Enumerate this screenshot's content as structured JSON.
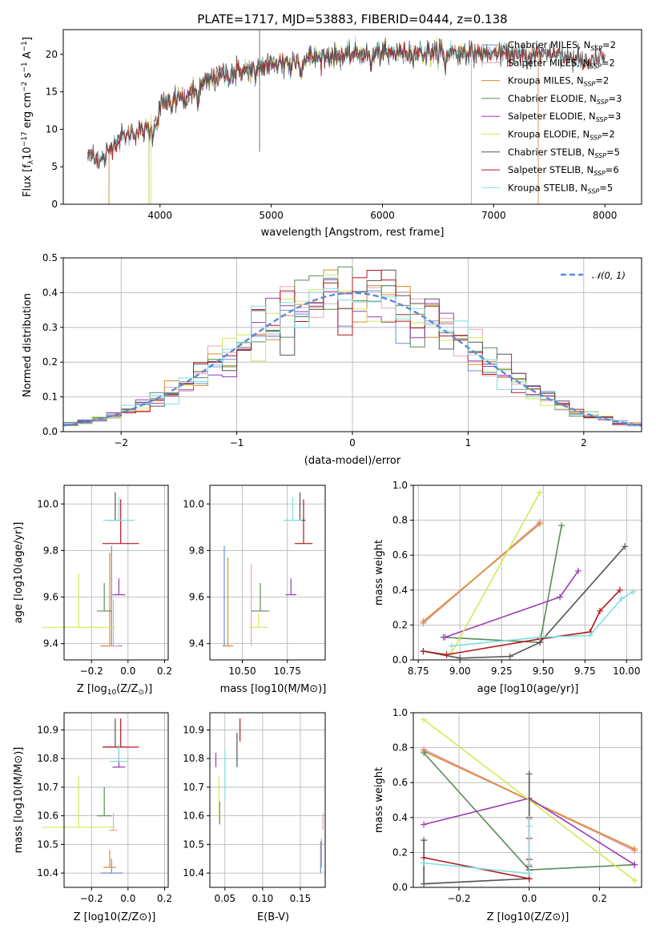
{
  "title": "PLATE=1717, MJD=53883, FIBERID=0444, z=0.138",
  "colors": {
    "Chabrier MILES": "#6b8ede",
    "Salpeter MILES": "#e3a7b7",
    "Kroupa MILES": "#e08a2c",
    "Chabrier ELODIE": "#5a8a5a",
    "Salpeter ELODIE": "#9b3ab6",
    "Kroupa ELODIE": "#d4e85a",
    "Chabrier STELIB": "#555555",
    "Salpeter STELIB": "#b5171e",
    "Kroupa STELIB": "#7fdde0"
  },
  "panels": {
    "spectrum": {
      "xlabel": "wavelength [Angstrom, rest frame]",
      "ylabel_main": "Flux [f",
      "ylabel_sub": "λ",
      "ylabel_mid": "10",
      "ylabel_exp1": "−17",
      "ylabel_tail": " erg cm",
      "ylabel_exp2": "−2",
      "ylabel_tail2": " s",
      "ylabel_exp3": "−1",
      "ylabel_tail3": " A",
      "ylabel_exp4": "−1",
      "ylabel_end": "]",
      "xticks": [
        "4000",
        "5000",
        "6000",
        "7000",
        "8000"
      ],
      "yticks": [
        "0",
        "5",
        "10",
        "15",
        "20"
      ],
      "legend": [
        {
          "name": "Chabrier MILES",
          "n": "2"
        },
        {
          "name": "Salpeter MILES",
          "n": "2"
        },
        {
          "name": "Kroupa MILES",
          "n": "2"
        },
        {
          "name": "Chabrier ELODIE",
          "n": "3"
        },
        {
          "name": "Salpeter ELODIE",
          "n": "3"
        },
        {
          "name": "Kroupa ELODIE",
          "n": "2"
        },
        {
          "name": "Chabrier STELIB",
          "n": "5"
        },
        {
          "name": "Salpeter STELIB",
          "n": "6"
        },
        {
          "name": "Kroupa STELIB",
          "n": "5"
        }
      ],
      "legend_nlabel": "N",
      "legend_nsub": "SSP"
    },
    "residuals": {
      "xlabel": "(data-model)/error",
      "ylabel": "Normed distribution",
      "xticks": [
        "−2",
        "−1",
        "0",
        "1",
        "2"
      ],
      "yticks": [
        "0.0",
        "0.1",
        "0.2",
        "0.3",
        "0.4",
        "0.5"
      ],
      "legend_label": "𝒩(0, 1)"
    },
    "z_age": {
      "xlabel_main": "Z [log",
      "xlabel_sub": "10",
      "xlabel_end": "(Z/Z",
      "xlabel_sun": "⊙",
      "xlabel_close": ")]",
      "ylabel": "age  [log10(age/yr)]",
      "xticks": [
        "−0.2",
        "0.0",
        "0.2"
      ],
      "yticks": [
        "9.4",
        "9.6",
        "9.8",
        "10.0"
      ]
    },
    "mass_age": {
      "xlabel": "mass [log10(M/M⊙)]",
      "xticks": [
        "10.50",
        "10.75"
      ],
      "yticks": [
        "9.4",
        "9.6",
        "9.8",
        "10.0"
      ]
    },
    "age_weight": {
      "xlabel": "age  [log10(age/yr)]",
      "ylabel": "mass weight",
      "xticks": [
        "8.75",
        "9.00",
        "9.25",
        "9.50",
        "9.75",
        "10.00"
      ],
      "yticks": [
        "0.0",
        "0.2",
        "0.4",
        "0.6",
        "0.8",
        "1.0"
      ]
    },
    "z_mass": {
      "xlabel": "Z [log10(Z/Z⊙)]",
      "ylabel": "mass [log10(M/M⊙)]",
      "xticks": [
        "−0.2",
        "0.0",
        "0.2"
      ],
      "yticks": [
        "10.4",
        "10.5",
        "10.6",
        "10.7",
        "10.8",
        "10.9"
      ]
    },
    "ebv_mass": {
      "xlabel": "E(B-V)",
      "xticks": [
        "0.05",
        "0.10",
        "0.15"
      ],
      "yticks": [
        "10.4",
        "10.5",
        "10.6",
        "10.7",
        "10.8",
        "10.9"
      ]
    },
    "z_weight": {
      "xlabel": "Z [log10(Z/Z⊙)]",
      "ylabel": "mass weight",
      "xticks": [
        "−0.2",
        "0.0",
        "0.2"
      ],
      "yticks": [
        "0.0",
        "0.2",
        "0.4",
        "0.6",
        "0.8",
        "1.0"
      ]
    }
  },
  "chart_data": [
    {
      "type": "line",
      "title": "PLATE=1717, MJD=53883, FIBERID=0444, z=0.138",
      "xlabel": "wavelength [Angstrom, rest frame]",
      "ylabel": "Flux [fλ10^-17 erg cm^-2 s^-1 A^-1]",
      "xlim": [
        3130,
        8330
      ],
      "ylim": [
        0,
        23.3
      ],
      "grid": false,
      "legend": "top-right",
      "spectrum_anchor_points": {
        "x": [
          3350,
          3500,
          3600,
          3750,
          3900,
          4000,
          4100,
          4300,
          4500,
          4800,
          5000,
          5200,
          5500,
          5800,
          6000,
          6300,
          6600,
          6900,
          7100,
          7300,
          7500,
          7800,
          8000
        ],
        "y": [
          6.4,
          6.0,
          8.5,
          9.5,
          10.0,
          13.0,
          14.0,
          15.0,
          17.0,
          18.0,
          18.7,
          19.3,
          19.7,
          20.0,
          20.2,
          20.2,
          20.3,
          20.1,
          20.0,
          19.8,
          20.3,
          19.0,
          19.5
        ]
      },
      "series": [
        {
          "name": "Chabrier MILES",
          "n_ssp": 2
        },
        {
          "name": "Salpeter MILES",
          "n_ssp": 2
        },
        {
          "name": "Kroupa MILES",
          "n_ssp": 2
        },
        {
          "name": "Chabrier ELODIE",
          "n_ssp": 3
        },
        {
          "name": "Salpeter ELODIE",
          "n_ssp": 3
        },
        {
          "name": "Kroupa ELODIE",
          "n_ssp": 2
        },
        {
          "name": "Chabrier STELIB",
          "n_ssp": 5
        },
        {
          "name": "Salpeter STELIB",
          "n_ssp": 6
        },
        {
          "name": "Kroupa STELIB",
          "n_ssp": 5
        }
      ]
    },
    {
      "type": "line",
      "xlabel": "(data-model)/error",
      "ylabel": "Normed distribution",
      "xlim": [
        -2.5,
        2.5
      ],
      "ylim": [
        0,
        0.5
      ],
      "grid": true,
      "legend": "top-right",
      "gaussian": {
        "name": "𝒩(0, 1)",
        "mu": 0,
        "sigma": 1
      },
      "histogram_bins": 40
    },
    {
      "type": "scatter",
      "xlabel": "Z [log10(Z/Z⊙)]",
      "ylabel": "age  [log10(age/yr)]",
      "xlim": [
        -0.35,
        0.22
      ],
      "ylim": [
        9.33,
        10.08
      ],
      "points": [
        {
          "s": "Chabrier MILES",
          "x": -0.09,
          "y": 9.39,
          "xe": 0.12,
          "ye": 0.43
        },
        {
          "s": "Kroupa MILES",
          "x": -0.1,
          "y": 9.39,
          "xe": 0.1,
          "ye": 0.4
        },
        {
          "s": "Salpeter MILES",
          "x": -0.08,
          "y": 9.39,
          "xe": 0.05,
          "ye": 0.2
        },
        {
          "s": "Chabrier ELODIE",
          "x": -0.13,
          "y": 9.54,
          "xe": 0.08,
          "ye": 0.12
        },
        {
          "s": "Salpeter ELODIE",
          "x": -0.05,
          "y": 9.61,
          "xe": 0.07,
          "ye": 0.07
        },
        {
          "s": "Kroupa ELODIE",
          "x": -0.27,
          "y": 9.47,
          "xe": 0.4,
          "ye": 0.23
        },
        {
          "s": "Chabrier STELIB",
          "x": -0.07,
          "y": 9.93,
          "xe": 0.09,
          "ye": 0.12
        },
        {
          "s": "Salpeter STELIB",
          "x": -0.04,
          "y": 9.83,
          "xe": 0.2,
          "ye": 0.19
        },
        {
          "s": "Kroupa STELIB",
          "x": -0.05,
          "y": 9.93,
          "xe": 0.17,
          "ye": 0.1
        }
      ]
    },
    {
      "type": "scatter",
      "xlabel": "mass [log10(M/M⊙)]",
      "xlim": [
        10.32,
        10.96
      ],
      "ylim": [
        9.33,
        10.08
      ],
      "points": [
        {
          "s": "Chabrier MILES",
          "x": 10.4,
          "y": 9.39,
          "ye": 0.43
        },
        {
          "s": "Kroupa MILES",
          "x": 10.42,
          "y": 9.39,
          "xe": 0.06,
          "ye": 0.38
        },
        {
          "s": "Salpeter MILES",
          "x": 10.55,
          "y": 9.39,
          "ye": 0.35
        },
        {
          "s": "Chabrier ELODIE",
          "x": 10.6,
          "y": 9.54,
          "xe": 0.1,
          "ye": 0.12
        },
        {
          "s": "Salpeter ELODIE",
          "x": 10.77,
          "y": 9.61,
          "xe": 0.06,
          "ye": 0.07
        },
        {
          "s": "Kroupa ELODIE",
          "x": 10.59,
          "y": 9.47,
          "xe": 0.1,
          "ye": 0.06
        },
        {
          "s": "Chabrier STELIB",
          "x": 10.82,
          "y": 9.93,
          "xe": 0.06,
          "ye": 0.12
        },
        {
          "s": "Salpeter STELIB",
          "x": 10.84,
          "y": 9.83,
          "xe": 0.1,
          "ye": 0.19
        },
        {
          "s": "Kroupa STELIB",
          "x": 10.78,
          "y": 9.93,
          "xe": 0.1,
          "ye": 0.1
        }
      ]
    },
    {
      "type": "line",
      "xlabel": "age  [log10(age/yr)]",
      "ylabel": "mass weight",
      "xlim": [
        8.72,
        10.09
      ],
      "ylim": [
        0,
        1
      ],
      "grid": true,
      "series": [
        {
          "name": "Chabrier MILES",
          "x": [
            8.78,
            9.48
          ],
          "y": [
            0.21,
            0.79
          ]
        },
        {
          "name": "Salpeter MILES",
          "x": [
            8.78,
            9.48
          ],
          "y": [
            0.21,
            0.79
          ]
        },
        {
          "name": "Kroupa MILES",
          "x": [
            8.78,
            9.48
          ],
          "y": [
            0.22,
            0.78
          ]
        },
        {
          "name": "Chabrier ELODIE",
          "x": [
            8.9,
            9.48,
            9.61
          ],
          "y": [
            0.13,
            0.1,
            0.77
          ]
        },
        {
          "name": "Salpeter ELODIE",
          "x": [
            8.91,
            9.6,
            9.71
          ],
          "y": [
            0.13,
            0.36,
            0.51
          ]
        },
        {
          "name": "Kroupa ELODIE",
          "x": [
            8.95,
            9.48
          ],
          "y": [
            0.04,
            0.96
          ]
        },
        {
          "name": "Chabrier STELIB",
          "x": [
            8.78,
            9.0,
            9.3,
            9.48,
            9.99
          ],
          "y": [
            0.05,
            0.01,
            0.02,
            0.1,
            0.65
          ]
        },
        {
          "name": "Salpeter STELIB",
          "x": [
            8.78,
            8.92,
            9.48,
            9.78,
            9.84,
            9.96
          ],
          "y": [
            0.05,
            0.03,
            0.12,
            0.16,
            0.28,
            0.4
          ]
        },
        {
          "name": "Kroupa STELIB",
          "x": [
            8.95,
            9.48,
            9.78,
            9.97,
            10.04
          ],
          "y": [
            0.08,
            0.13,
            0.14,
            0.35,
            0.39
          ]
        }
      ]
    },
    {
      "type": "scatter",
      "xlabel": "Z [log10(Z/Z⊙)]",
      "ylabel": "mass [log10(M/M⊙)]",
      "xlim": [
        -0.35,
        0.22
      ],
      "ylim": [
        10.35,
        10.96
      ],
      "points": [
        {
          "s": "Chabrier MILES",
          "x": -0.09,
          "y": 10.4,
          "xe": 0.12,
          "ye": 0.05
        },
        {
          "s": "Kroupa MILES",
          "x": -0.1,
          "y": 10.42,
          "xe": 0.07,
          "ye": 0.06
        },
        {
          "s": "Salpeter MILES",
          "x": -0.08,
          "y": 10.55,
          "xe": 0.05,
          "ye": 0.06
        },
        {
          "s": "Chabrier ELODIE",
          "x": -0.13,
          "y": 10.6,
          "xe": 0.08,
          "ye": 0.1
        },
        {
          "s": "Salpeter ELODIE",
          "x": -0.05,
          "y": 10.77,
          "xe": 0.07,
          "ye": 0.07
        },
        {
          "s": "Kroupa ELODIE",
          "x": -0.27,
          "y": 10.56,
          "xe": 0.4,
          "ye": 0.18
        },
        {
          "s": "Chabrier STELIB",
          "x": -0.07,
          "y": 10.84,
          "xe": 0.12,
          "ye": 0.1
        },
        {
          "s": "Salpeter STELIB",
          "x": -0.04,
          "y": 10.84,
          "xe": 0.2,
          "ye": 0.1
        },
        {
          "s": "Kroupa STELIB",
          "x": -0.05,
          "y": 10.79,
          "xe": 0.1,
          "ye": 0.06
        }
      ]
    },
    {
      "type": "scatter",
      "xlabel": "E(B-V)",
      "xlim": [
        0.03,
        0.183
      ],
      "ylim": [
        10.35,
        10.96
      ],
      "points": [
        {
          "s": "Chabrier MILES",
          "x": 0.177,
          "y": 10.4,
          "ye": 0.11
        },
        {
          "s": "Kroupa MILES",
          "x": 0.178,
          "y": 10.42,
          "ye": 0.1
        },
        {
          "s": "Salpeter MILES",
          "x": 0.18,
          "y": 10.55,
          "ye": 0.06
        },
        {
          "s": "Chabrier ELODIE",
          "x": 0.043,
          "y": 10.57,
          "ye": 0.08
        },
        {
          "s": "Salpeter ELODIE",
          "x": 0.038,
          "y": 10.77,
          "ye": 0.05
        },
        {
          "s": "Kroupa ELODIE",
          "x": 0.042,
          "y": 10.59,
          "ye": 0.15
        },
        {
          "s": "Chabrier STELIB",
          "x": 0.066,
          "y": 10.77,
          "ye": 0.12
        },
        {
          "s": "Salpeter STELIB",
          "x": 0.07,
          "y": 10.86,
          "ye": 0.08
        },
        {
          "s": "Kroupa STELIB",
          "x": 0.05,
          "y": 10.66,
          "ye": 0.17
        }
      ]
    },
    {
      "type": "line",
      "xlabel": "Z [log10(Z/Z⊙)]",
      "ylabel": "mass weight",
      "xlim": [
        -0.33,
        0.32
      ],
      "ylim": [
        0,
        1
      ],
      "grid": true,
      "series": [
        {
          "name": "Chabrier MILES",
          "x": [
            -0.3,
            0.3
          ],
          "y": [
            0.79,
            0.21
          ]
        },
        {
          "name": "Salpeter MILES",
          "x": [
            -0.3,
            0.3
          ],
          "y": [
            0.79,
            0.21
          ]
        },
        {
          "name": "Kroupa MILES",
          "x": [
            -0.3,
            0.3
          ],
          "y": [
            0.78,
            0.22
          ]
        },
        {
          "name": "Chabrier ELODIE",
          "x": [
            -0.3,
            0.0,
            0.3
          ],
          "y": [
            0.77,
            0.1,
            0.13
          ]
        },
        {
          "name": "Salpeter ELODIE",
          "x": [
            -0.3,
            0.0,
            0.3
          ],
          "y": [
            0.36,
            0.51,
            0.13
          ]
        },
        {
          "name": "Kroupa ELODIE",
          "x": [
            -0.3,
            0.3
          ],
          "y": [
            0.96,
            0.04
          ]
        },
        {
          "name": "Chabrier STELIB",
          "x": [
            -0.3,
            -0.3,
            0.0,
            0.0,
            0.0
          ],
          "y": [
            0.27,
            0.02,
            0.05,
            0.1,
            0.65
          ]
        },
        {
          "name": "Salpeter STELIB",
          "x": [
            -0.3,
            0.0,
            0.0,
            0.0,
            0.0,
            0.0
          ],
          "y": [
            0.17,
            0.05,
            0.12,
            0.28,
            0.4,
            0.16
          ]
        },
        {
          "name": "Kroupa STELIB",
          "x": [
            -0.3,
            0.0,
            0.0,
            0.0,
            0.0
          ],
          "y": [
            0.14,
            0.08,
            0.35,
            0.39,
            0.13
          ]
        }
      ]
    }
  ]
}
